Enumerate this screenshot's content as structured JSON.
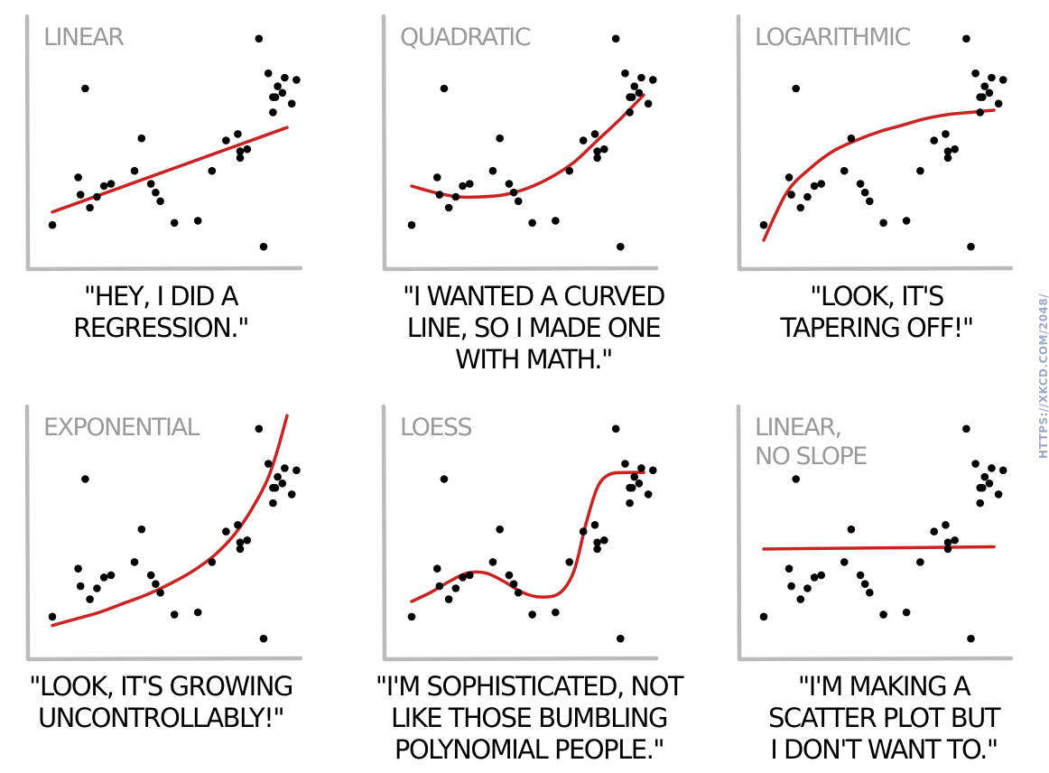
{
  "credit": "HTTPS://XKCD.COM/2048/",
  "colors": {
    "axis": "#bbbbbb",
    "fit_line": "#cc2222",
    "points": "#000000",
    "title_text": "#9a9a9a",
    "credit_text": "#9aa9c8"
  },
  "chart_data": [
    {
      "type": "scatter",
      "title": "LINEAR",
      "caption_lines": [
        "\"HEY, I DID A",
        "REGRESSION.\""
      ],
      "fit": "linear",
      "fit_line": [
        [
          0.0,
          0.18
        ],
        [
          1.0,
          0.57
        ]
      ],
      "points": [
        [
          0.0,
          0.12
        ],
        [
          0.11,
          0.34
        ],
        [
          0.12,
          0.26
        ],
        [
          0.14,
          0.75
        ],
        [
          0.16,
          0.2
        ],
        [
          0.19,
          0.25
        ],
        [
          0.22,
          0.3
        ],
        [
          0.25,
          0.31
        ],
        [
          0.35,
          0.37
        ],
        [
          0.38,
          0.52
        ],
        [
          0.42,
          0.31
        ],
        [
          0.44,
          0.27
        ],
        [
          0.46,
          0.23
        ],
        [
          0.52,
          0.13
        ],
        [
          0.62,
          0.14
        ],
        [
          0.68,
          0.37
        ],
        [
          0.74,
          0.51
        ],
        [
          0.79,
          0.54
        ],
        [
          0.8,
          0.46
        ],
        [
          0.8,
          0.43
        ],
        [
          0.83,
          0.47
        ],
        [
          0.88,
          0.98
        ],
        [
          0.9,
          0.02
        ],
        [
          0.92,
          0.82
        ],
        [
          0.94,
          0.64
        ],
        [
          0.95,
          0.71
        ],
        [
          0.94,
          0.71
        ],
        [
          0.96,
          0.76
        ],
        [
          0.98,
          0.73
        ],
        [
          0.99,
          0.8
        ],
        [
          1.02,
          0.68
        ],
        [
          1.04,
          0.79
        ]
      ]
    },
    {
      "type": "scatter",
      "title": "QUADRATIC",
      "caption_lines": [
        "\"I WANTED A CURVED",
        "LINE, SO I MADE ONE",
        "WITH MATH.\""
      ],
      "fit": "quadratic",
      "fit_line": [
        [
          0.0,
          0.3
        ],
        [
          0.1,
          0.27
        ],
        [
          0.2,
          0.25
        ],
        [
          0.3,
          0.25
        ],
        [
          0.4,
          0.26
        ],
        [
          0.5,
          0.29
        ],
        [
          0.6,
          0.34
        ],
        [
          0.7,
          0.41
        ],
        [
          0.8,
          0.51
        ],
        [
          0.9,
          0.61
        ],
        [
          1.0,
          0.72
        ]
      ],
      "points": [
        [
          0.0,
          0.12
        ],
        [
          0.11,
          0.34
        ],
        [
          0.12,
          0.26
        ],
        [
          0.14,
          0.75
        ],
        [
          0.16,
          0.2
        ],
        [
          0.19,
          0.25
        ],
        [
          0.22,
          0.3
        ],
        [
          0.25,
          0.31
        ],
        [
          0.35,
          0.37
        ],
        [
          0.38,
          0.52
        ],
        [
          0.42,
          0.31
        ],
        [
          0.44,
          0.27
        ],
        [
          0.46,
          0.23
        ],
        [
          0.52,
          0.13
        ],
        [
          0.62,
          0.14
        ],
        [
          0.68,
          0.37
        ],
        [
          0.74,
          0.51
        ],
        [
          0.79,
          0.54
        ],
        [
          0.8,
          0.46
        ],
        [
          0.8,
          0.43
        ],
        [
          0.83,
          0.47
        ],
        [
          0.88,
          0.98
        ],
        [
          0.9,
          0.02
        ],
        [
          0.92,
          0.82
        ],
        [
          0.94,
          0.64
        ],
        [
          0.95,
          0.71
        ],
        [
          0.94,
          0.71
        ],
        [
          0.96,
          0.76
        ],
        [
          0.98,
          0.73
        ],
        [
          0.99,
          0.8
        ],
        [
          1.02,
          0.68
        ],
        [
          1.04,
          0.79
        ]
      ]
    },
    {
      "type": "scatter",
      "title": "LOGARITHMIC",
      "caption_lines": [
        "\"LOOK, IT'S",
        "TAPERING OFF!\""
      ],
      "fit": "logarithmic",
      "fit_line": [
        [
          0.0,
          0.05
        ],
        [
          0.1,
          0.27
        ],
        [
          0.2,
          0.38
        ],
        [
          0.3,
          0.46
        ],
        [
          0.4,
          0.51
        ],
        [
          0.5,
          0.55
        ],
        [
          0.6,
          0.58
        ],
        [
          0.7,
          0.61
        ],
        [
          0.8,
          0.63
        ],
        [
          0.9,
          0.64
        ],
        [
          1.0,
          0.65
        ]
      ],
      "points": [
        [
          0.0,
          0.12
        ],
        [
          0.11,
          0.34
        ],
        [
          0.12,
          0.26
        ],
        [
          0.14,
          0.75
        ],
        [
          0.16,
          0.2
        ],
        [
          0.19,
          0.25
        ],
        [
          0.22,
          0.3
        ],
        [
          0.25,
          0.31
        ],
        [
          0.35,
          0.37
        ],
        [
          0.38,
          0.52
        ],
        [
          0.42,
          0.31
        ],
        [
          0.44,
          0.27
        ],
        [
          0.46,
          0.23
        ],
        [
          0.52,
          0.13
        ],
        [
          0.62,
          0.14
        ],
        [
          0.68,
          0.37
        ],
        [
          0.74,
          0.51
        ],
        [
          0.79,
          0.54
        ],
        [
          0.8,
          0.46
        ],
        [
          0.8,
          0.43
        ],
        [
          0.83,
          0.47
        ],
        [
          0.88,
          0.98
        ],
        [
          0.9,
          0.02
        ],
        [
          0.92,
          0.82
        ],
        [
          0.94,
          0.64
        ],
        [
          0.95,
          0.71
        ],
        [
          0.94,
          0.71
        ],
        [
          0.96,
          0.76
        ],
        [
          0.98,
          0.73
        ],
        [
          0.99,
          0.8
        ],
        [
          1.02,
          0.68
        ],
        [
          1.04,
          0.79
        ]
      ]
    },
    {
      "type": "scatter",
      "title": "EXPONENTIAL",
      "caption_lines": [
        "\"LOOK, IT'S GROWING",
        "UNCONTROLLABLY!\""
      ],
      "fit": "exponential",
      "fit_line": [
        [
          0.0,
          0.08
        ],
        [
          0.1,
          0.11
        ],
        [
          0.2,
          0.14
        ],
        [
          0.3,
          0.18
        ],
        [
          0.4,
          0.22
        ],
        [
          0.5,
          0.27
        ],
        [
          0.6,
          0.33
        ],
        [
          0.7,
          0.41
        ],
        [
          0.8,
          0.53
        ],
        [
          0.9,
          0.71
        ],
        [
          0.95,
          0.85
        ],
        [
          1.0,
          1.04
        ]
      ],
      "points": [
        [
          0.0,
          0.12
        ],
        [
          0.11,
          0.34
        ],
        [
          0.12,
          0.26
        ],
        [
          0.14,
          0.75
        ],
        [
          0.16,
          0.2
        ],
        [
          0.19,
          0.25
        ],
        [
          0.22,
          0.3
        ],
        [
          0.25,
          0.31
        ],
        [
          0.35,
          0.37
        ],
        [
          0.38,
          0.52
        ],
        [
          0.42,
          0.31
        ],
        [
          0.44,
          0.27
        ],
        [
          0.46,
          0.23
        ],
        [
          0.52,
          0.13
        ],
        [
          0.62,
          0.14
        ],
        [
          0.68,
          0.37
        ],
        [
          0.74,
          0.51
        ],
        [
          0.79,
          0.54
        ],
        [
          0.8,
          0.46
        ],
        [
          0.8,
          0.43
        ],
        [
          0.83,
          0.47
        ],
        [
          0.88,
          0.98
        ],
        [
          0.9,
          0.02
        ],
        [
          0.92,
          0.82
        ],
        [
          0.94,
          0.64
        ],
        [
          0.95,
          0.71
        ],
        [
          0.94,
          0.71
        ],
        [
          0.96,
          0.76
        ],
        [
          0.98,
          0.73
        ],
        [
          0.99,
          0.8
        ],
        [
          1.02,
          0.68
        ],
        [
          1.04,
          0.79
        ]
      ]
    },
    {
      "type": "scatter",
      "title": "LOESS",
      "caption_lines": [
        "\"I'M SOPHISTICATED, NOT",
        "LIKE THOSE BUMBLING",
        "POLYNOMIAL PEOPLE.\""
      ],
      "fit": "loess",
      "fit_line": [
        [
          0.0,
          0.19
        ],
        [
          0.08,
          0.23
        ],
        [
          0.16,
          0.28
        ],
        [
          0.24,
          0.32
        ],
        [
          0.32,
          0.32
        ],
        [
          0.4,
          0.28
        ],
        [
          0.48,
          0.23
        ],
        [
          0.56,
          0.21
        ],
        [
          0.64,
          0.23
        ],
        [
          0.7,
          0.33
        ],
        [
          0.75,
          0.54
        ],
        [
          0.8,
          0.71
        ],
        [
          0.85,
          0.77
        ],
        [
          0.92,
          0.78
        ],
        [
          1.0,
          0.78
        ]
      ],
      "points": [
        [
          0.0,
          0.12
        ],
        [
          0.11,
          0.34
        ],
        [
          0.12,
          0.26
        ],
        [
          0.14,
          0.75
        ],
        [
          0.16,
          0.2
        ],
        [
          0.19,
          0.25
        ],
        [
          0.22,
          0.3
        ],
        [
          0.25,
          0.31
        ],
        [
          0.35,
          0.37
        ],
        [
          0.38,
          0.52
        ],
        [
          0.42,
          0.31
        ],
        [
          0.44,
          0.27
        ],
        [
          0.46,
          0.23
        ],
        [
          0.52,
          0.13
        ],
        [
          0.62,
          0.14
        ],
        [
          0.68,
          0.37
        ],
        [
          0.74,
          0.51
        ],
        [
          0.79,
          0.54
        ],
        [
          0.8,
          0.46
        ],
        [
          0.8,
          0.43
        ],
        [
          0.83,
          0.47
        ],
        [
          0.88,
          0.98
        ],
        [
          0.9,
          0.02
        ],
        [
          0.92,
          0.82
        ],
        [
          0.94,
          0.64
        ],
        [
          0.95,
          0.71
        ],
        [
          0.94,
          0.71
        ],
        [
          0.96,
          0.76
        ],
        [
          0.98,
          0.73
        ],
        [
          0.99,
          0.8
        ],
        [
          1.02,
          0.68
        ],
        [
          1.04,
          0.79
        ]
      ]
    },
    {
      "type": "scatter",
      "title_lines": [
        "LINEAR,",
        "NO SLOPE"
      ],
      "caption_lines": [
        "\"I'M MAKING A",
        "SCATTER PLOT BUT",
        "I DON'T WANT TO.\""
      ],
      "fit": "linear-no-slope",
      "fit_line": [
        [
          0.0,
          0.43
        ],
        [
          1.0,
          0.44
        ]
      ],
      "points": [
        [
          0.0,
          0.12
        ],
        [
          0.11,
          0.34
        ],
        [
          0.12,
          0.26
        ],
        [
          0.14,
          0.75
        ],
        [
          0.16,
          0.2
        ],
        [
          0.19,
          0.25
        ],
        [
          0.22,
          0.3
        ],
        [
          0.25,
          0.31
        ],
        [
          0.35,
          0.37
        ],
        [
          0.38,
          0.52
        ],
        [
          0.42,
          0.31
        ],
        [
          0.44,
          0.27
        ],
        [
          0.46,
          0.23
        ],
        [
          0.52,
          0.13
        ],
        [
          0.62,
          0.14
        ],
        [
          0.68,
          0.37
        ],
        [
          0.74,
          0.51
        ],
        [
          0.79,
          0.54
        ],
        [
          0.8,
          0.46
        ],
        [
          0.8,
          0.43
        ],
        [
          0.83,
          0.47
        ],
        [
          0.88,
          0.98
        ],
        [
          0.9,
          0.02
        ],
        [
          0.92,
          0.82
        ],
        [
          0.94,
          0.64
        ],
        [
          0.95,
          0.71
        ],
        [
          0.94,
          0.71
        ],
        [
          0.96,
          0.76
        ],
        [
          0.98,
          0.73
        ],
        [
          0.99,
          0.8
        ],
        [
          1.02,
          0.68
        ],
        [
          1.04,
          0.79
        ]
      ]
    }
  ]
}
